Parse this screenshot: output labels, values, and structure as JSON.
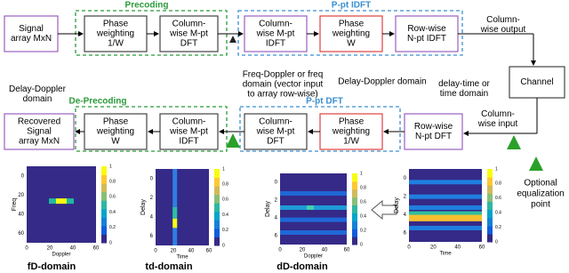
{
  "groups": [
    "Precoding",
    "P-pt IDFT",
    "De-Precoding",
    "P-pt DFT"
  ],
  "blocks": [
    [
      "Signal",
      "array MxN"
    ],
    [
      "Phase",
      "weighting",
      "1/W"
    ],
    [
      "Column-",
      "wise M-pt",
      "DFT"
    ],
    [
      "Column-",
      "wise M-pt",
      "IDFT"
    ],
    [
      "Phase",
      "weighting",
      "W"
    ],
    [
      "Row-wise",
      "N-pt IDFT"
    ],
    [
      "Channel"
    ],
    [
      "Recovered",
      "Signal",
      "array MxN"
    ],
    [
      "Phase",
      "weighting",
      "W"
    ],
    [
      "Column-",
      "wise M-pt",
      "IDFT"
    ],
    [
      "Column-",
      "wise M-pt",
      "DFT"
    ],
    [
      "Phase",
      "weighting",
      "1/W"
    ],
    [
      "Row-wise",
      "N-pt DFT"
    ]
  ],
  "annotations": [
    [
      "Column-",
      "wise output"
    ],
    [
      "Freq-Doppler or freq",
      "domain (vector input",
      "to array row-wise)"
    ],
    [
      "Delay-Doppler",
      "domain"
    ],
    [
      "Delay-Doppler domain"
    ],
    [
      "delay-time or",
      "time domain"
    ],
    [
      "Column-",
      "wise input"
    ],
    [
      "Optional",
      "equalization",
      "point"
    ]
  ],
  "plots": [
    {
      "caption": "fD-domain",
      "xlabel": "Doppler",
      "ylabel": "Freq",
      "xticks": [
        "0",
        "20",
        "40",
        "60"
      ],
      "yticks": [
        "0",
        "20",
        "40",
        "60"
      ],
      "cbticks": [
        "0",
        "0.2",
        "0.4",
        "0.6",
        "0.8",
        "1"
      ]
    },
    {
      "caption": "td-domain",
      "xlabel": "Time",
      "ylabel": "Delay",
      "xticks": [
        "0",
        "20",
        "40",
        "60"
      ],
      "yticks": [
        "0",
        "2",
        "4",
        "6"
      ],
      "cbticks": [
        "0",
        "0.2",
        "0.4",
        "0.6",
        "0.8",
        "1"
      ]
    },
    {
      "caption": "dD-domain",
      "xlabel": "Doppler",
      "ylabel": "Delay",
      "xticks": [
        "0",
        "20",
        "40",
        "60"
      ],
      "yticks": [
        "0",
        "2",
        "4",
        "6"
      ],
      "cbticks": [
        "0",
        "0.2",
        "0.4",
        "0.6",
        "0.8",
        "1"
      ]
    },
    {
      "caption": "",
      "xlabel": "Time",
      "ylabel": "Delay",
      "xticks": [
        "0",
        "20",
        "40",
        "60"
      ],
      "yticks": [
        "0",
        "2",
        "4",
        "6"
      ],
      "cbticks": [
        "0",
        "0.2",
        "0.4",
        "0.6",
        "0.8",
        "1"
      ]
    }
  ]
}
